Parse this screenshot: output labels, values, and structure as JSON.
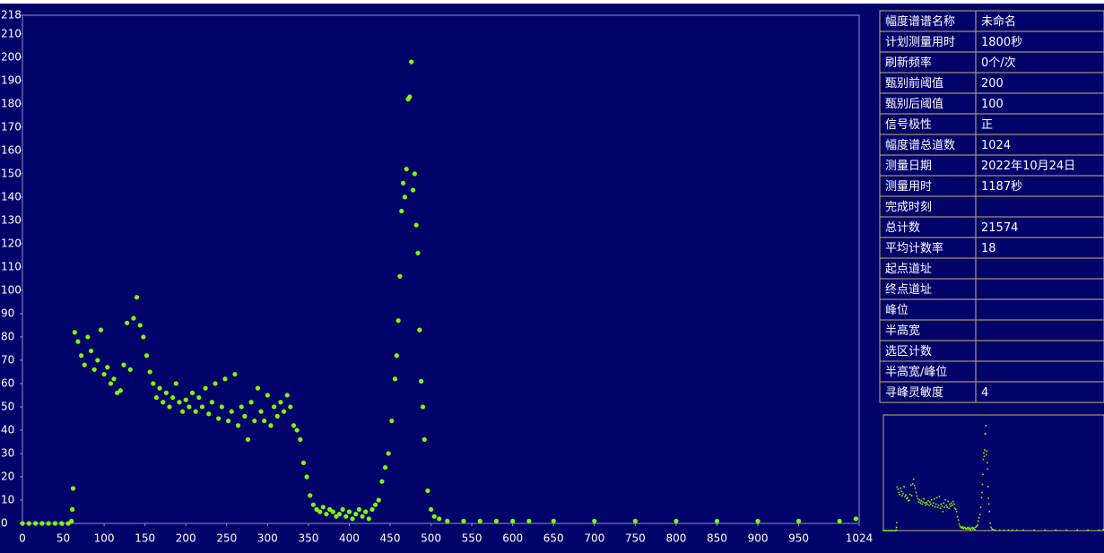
{
  "chart_data": {
    "type": "scatter",
    "color": "#7cfc00",
    "point_radius": 2.6,
    "x": [
      0,
      8,
      16,
      24,
      32,
      40,
      48,
      56,
      60,
      61,
      62,
      64,
      68,
      72,
      76,
      80,
      84,
      88,
      92,
      96,
      100,
      104,
      108,
      112,
      116,
      120,
      124,
      128,
      132,
      136,
      140,
      144,
      148,
      152,
      156,
      160,
      164,
      168,
      172,
      176,
      180,
      184,
      188,
      192,
      196,
      200,
      204,
      208,
      212,
      216,
      220,
      224,
      228,
      232,
      236,
      240,
      244,
      248,
      252,
      256,
      260,
      264,
      268,
      272,
      276,
      280,
      284,
      288,
      292,
      296,
      300,
      304,
      308,
      312,
      316,
      320,
      324,
      328,
      332,
      336,
      340,
      344,
      348,
      352,
      356,
      360,
      364,
      368,
      372,
      376,
      380,
      384,
      388,
      392,
      396,
      400,
      404,
      408,
      412,
      416,
      420,
      424,
      428,
      432,
      436,
      440,
      444,
      448,
      452,
      456,
      458,
      460,
      462,
      464,
      466,
      468,
      470,
      472,
      474,
      476,
      478,
      480,
      482,
      484,
      486,
      488,
      490,
      492,
      496,
      500,
      504,
      510,
      520,
      540,
      560,
      580,
      600,
      620,
      650,
      700,
      750,
      800,
      850,
      900,
      950,
      1000,
      1020
    ],
    "values": [
      0,
      0,
      0,
      0,
      0,
      0,
      0,
      0,
      1,
      6,
      15,
      82,
      78,
      72,
      68,
      80,
      74,
      66,
      70,
      83,
      64,
      67,
      60,
      62,
      56,
      57,
      68,
      86,
      66,
      88,
      97,
      85,
      80,
      72,
      65,
      60,
      54,
      58,
      52,
      56,
      50,
      54,
      60,
      52,
      48,
      53,
      50,
      56,
      48,
      54,
      50,
      58,
      47,
      52,
      60,
      45,
      50,
      62,
      44,
      48,
      64,
      42,
      50,
      46,
      36,
      52,
      44,
      58,
      48,
      44,
      55,
      42,
      50,
      46,
      52,
      48,
      55,
      50,
      42,
      40,
      36,
      26,
      20,
      12,
      8,
      6,
      5,
      7,
      4,
      6,
      5,
      3,
      4,
      6,
      3,
      5,
      2,
      4,
      6,
      3,
      5,
      2,
      6,
      8,
      10,
      18,
      24,
      30,
      44,
      62,
      72,
      87,
      106,
      134,
      146,
      140,
      152,
      182,
      183,
      198,
      143,
      150,
      128,
      116,
      83,
      61,
      50,
      36,
      14,
      6,
      3,
      2,
      1,
      1,
      1,
      1,
      1,
      1,
      1,
      1,
      1,
      1,
      1,
      1,
      1,
      1,
      2
    ],
    "xlim": [
      0,
      1024
    ],
    "xticks": [
      0,
      50,
      100,
      150,
      200,
      250,
      300,
      350,
      400,
      450,
      500,
      550,
      600,
      650,
      700,
      750,
      800,
      850,
      900,
      950,
      1024
    ],
    "ylim": [
      0,
      218
    ],
    "yticks": [
      0,
      10,
      20,
      30,
      40,
      50,
      60,
      70,
      80,
      90,
      100,
      110,
      120,
      130,
      140,
      150,
      160,
      170,
      180,
      190,
      200,
      210,
      218
    ]
  },
  "table": {
    "rows": [
      [
        "幅度谱谱名称",
        "未命名"
      ],
      [
        "计划测量用时",
        "1800秒"
      ],
      [
        "刷新频率",
        "0个/次"
      ],
      [
        "甄别前阈值",
        "200"
      ],
      [
        "甄别后阈值",
        "100"
      ],
      [
        "信号极性",
        "正"
      ],
      [
        "幅度谱总道数",
        "1024"
      ],
      [
        "测量日期",
        "2022年10月24日"
      ],
      [
        "测量用时",
        "1187秒"
      ],
      [
        "完成时刻"
      ],
      [
        "总计数",
        "21574"
      ],
      [
        "平均计数率",
        "18"
      ],
      [
        "起点道址"
      ],
      [
        "终点道址"
      ],
      [
        "峰位"
      ],
      [
        "半高宽"
      ],
      [
        "选区计数"
      ],
      [
        "半高宽/峰位"
      ],
      [
        "寻峰灵敏度",
        "4"
      ]
    ]
  }
}
